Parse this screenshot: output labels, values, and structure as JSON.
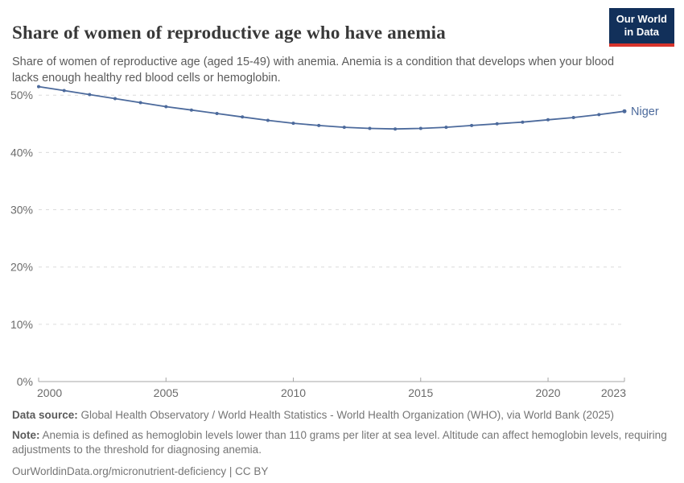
{
  "header": {
    "title": "Share of women of reproductive age who have anemia",
    "subtitle": "Share of women of reproductive age (aged 15-49) with anemia. Anemia is a condition that develops when your blood lacks enough healthy red blood cells or hemoglobin.",
    "logo": {
      "line1": "Our World",
      "line2": "in Data",
      "bg_color": "#12305a",
      "bar_color": "#d7342c"
    }
  },
  "chart_data": {
    "type": "line",
    "x": [
      2000,
      2001,
      2002,
      2003,
      2004,
      2005,
      2006,
      2007,
      2008,
      2009,
      2010,
      2011,
      2012,
      2013,
      2014,
      2015,
      2016,
      2017,
      2018,
      2019,
      2020,
      2021,
      2022,
      2023
    ],
    "series": [
      {
        "name": "Niger",
        "color": "#4C6A9C",
        "values": [
          51.5,
          50.8,
          50.1,
          49.4,
          48.7,
          48.0,
          47.4,
          46.8,
          46.2,
          45.6,
          45.1,
          44.7,
          44.4,
          44.2,
          44.1,
          44.2,
          44.4,
          44.7,
          45.0,
          45.3,
          45.7,
          46.1,
          46.6,
          47.2
        ]
      }
    ],
    "title": "Share of women of reproductive age who have anemia",
    "xlabel": "",
    "ylabel": "",
    "xlim": [
      2000,
      2023
    ],
    "ylim": [
      0,
      52
    ],
    "x_ticks": [
      2000,
      2005,
      2010,
      2015,
      2020,
      2023
    ],
    "y_ticks": [
      0,
      10,
      20,
      30,
      40,
      50
    ],
    "y_tick_suffix": "%",
    "grid": "horizontal-dashed",
    "legend_position": "end-of-line-label",
    "colors": {
      "grid": "#dcdcdc",
      "axis": "#a6a6a6",
      "tick_text": "#6b6b6b"
    }
  },
  "footer": {
    "datasource_label": "Data source:",
    "datasource_text": " Global Health Observatory / World Health Statistics - World Health Organization (WHO), via World Bank (2025)",
    "note_label": "Note:",
    "note_text": " Anemia is defined as hemoglobin levels lower than 110 grams per liter at sea level. Altitude can affect hemoglobin levels, requiring adjustments to the threshold for diagnosing anemia.",
    "link": "OurWorldinData.org/micronutrient-deficiency | CC BY"
  }
}
